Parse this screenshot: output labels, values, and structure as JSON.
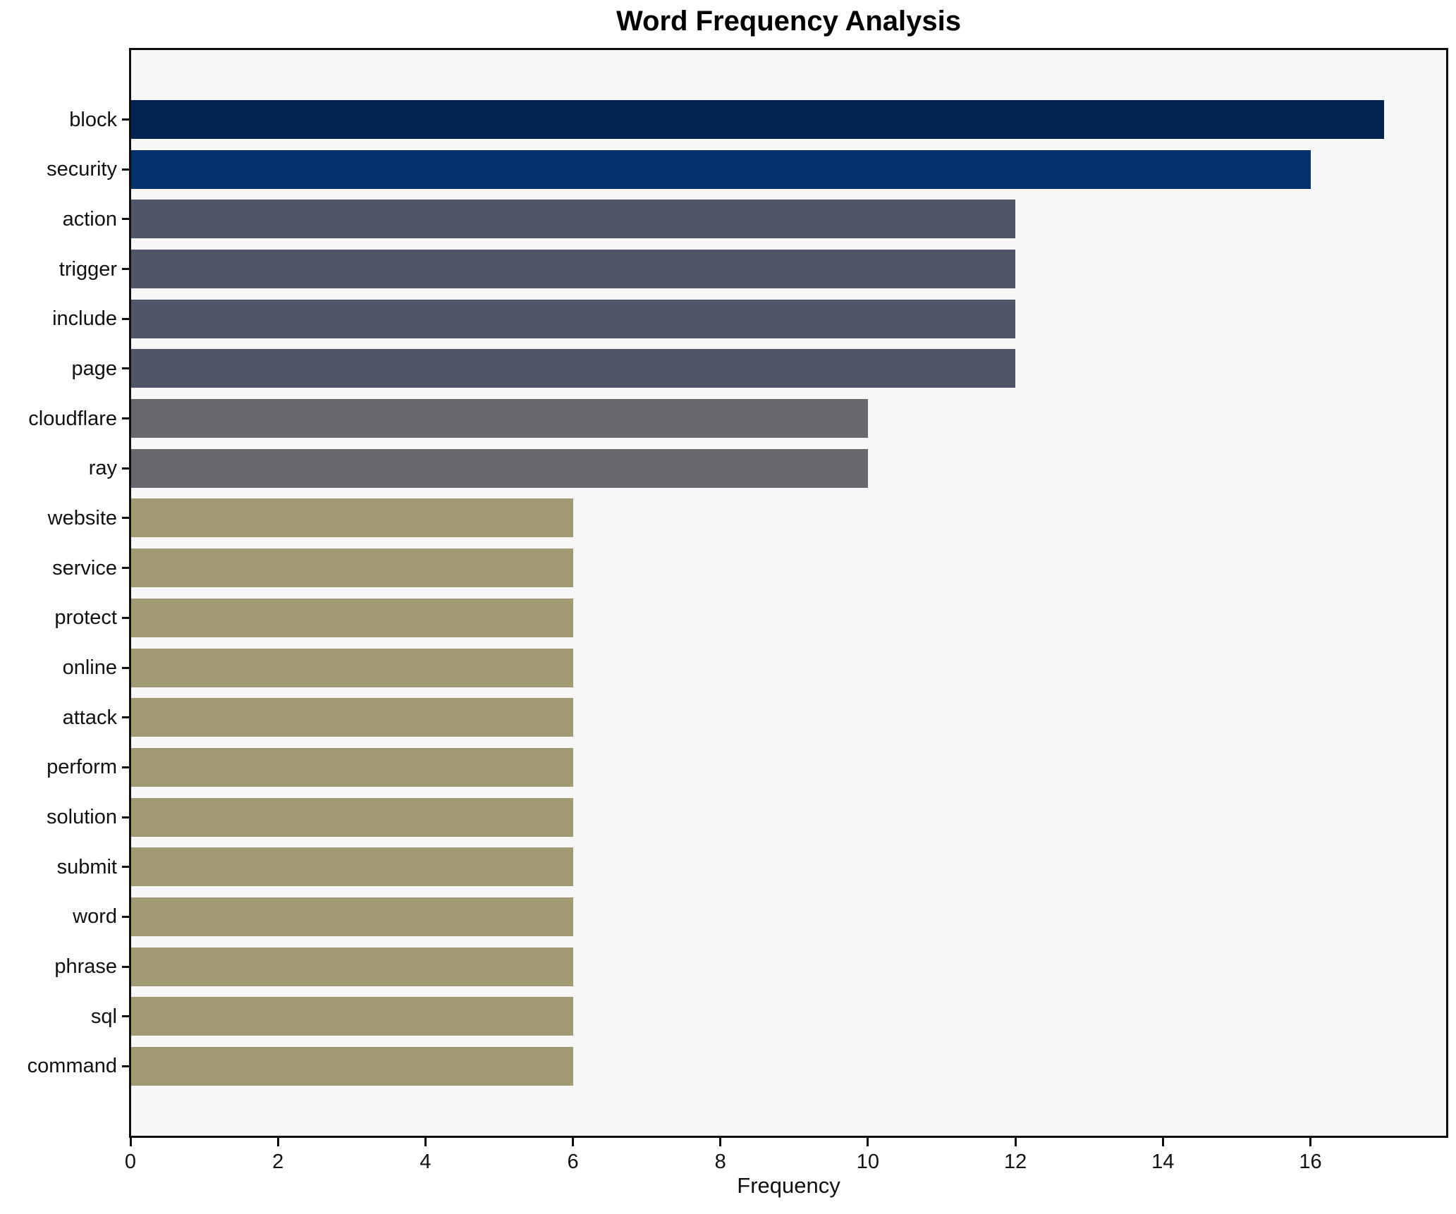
{
  "chart_data": {
    "type": "bar",
    "orientation": "horizontal",
    "title": "Word Frequency Analysis",
    "xlabel": "Frequency",
    "ylabel": "",
    "categories": [
      "block",
      "security",
      "action",
      "trigger",
      "include",
      "page",
      "cloudflare",
      "ray",
      "website",
      "service",
      "protect",
      "online",
      "attack",
      "perform",
      "solution",
      "submit",
      "word",
      "phrase",
      "sql",
      "command"
    ],
    "values": [
      17,
      16,
      12,
      12,
      12,
      12,
      10,
      10,
      6,
      6,
      6,
      6,
      6,
      6,
      6,
      6,
      6,
      6,
      6,
      6
    ],
    "bar_colors": [
      "#042350",
      "#04306b",
      "#4e5668",
      "#4e5668",
      "#4e5668",
      "#4e5668",
      "#67696e",
      "#67696e",
      "#a19a72",
      "#a19a72",
      "#a19a72",
      "#a19a72",
      "#a19a72",
      "#a19a72",
      "#a19a72",
      "#a19a72",
      "#a19a72",
      "#a19a72",
      "#a19a72",
      "#a19a72"
    ],
    "x_ticks": [
      0,
      2,
      4,
      6,
      8,
      10,
      12,
      14,
      16
    ],
    "xlim": [
      0,
      17.85
    ],
    "grid": false,
    "legend": "none",
    "plot_background": "#f7f7f8",
    "figure_background": "#ffffff",
    "spine_color": "#0d0d0d"
  }
}
